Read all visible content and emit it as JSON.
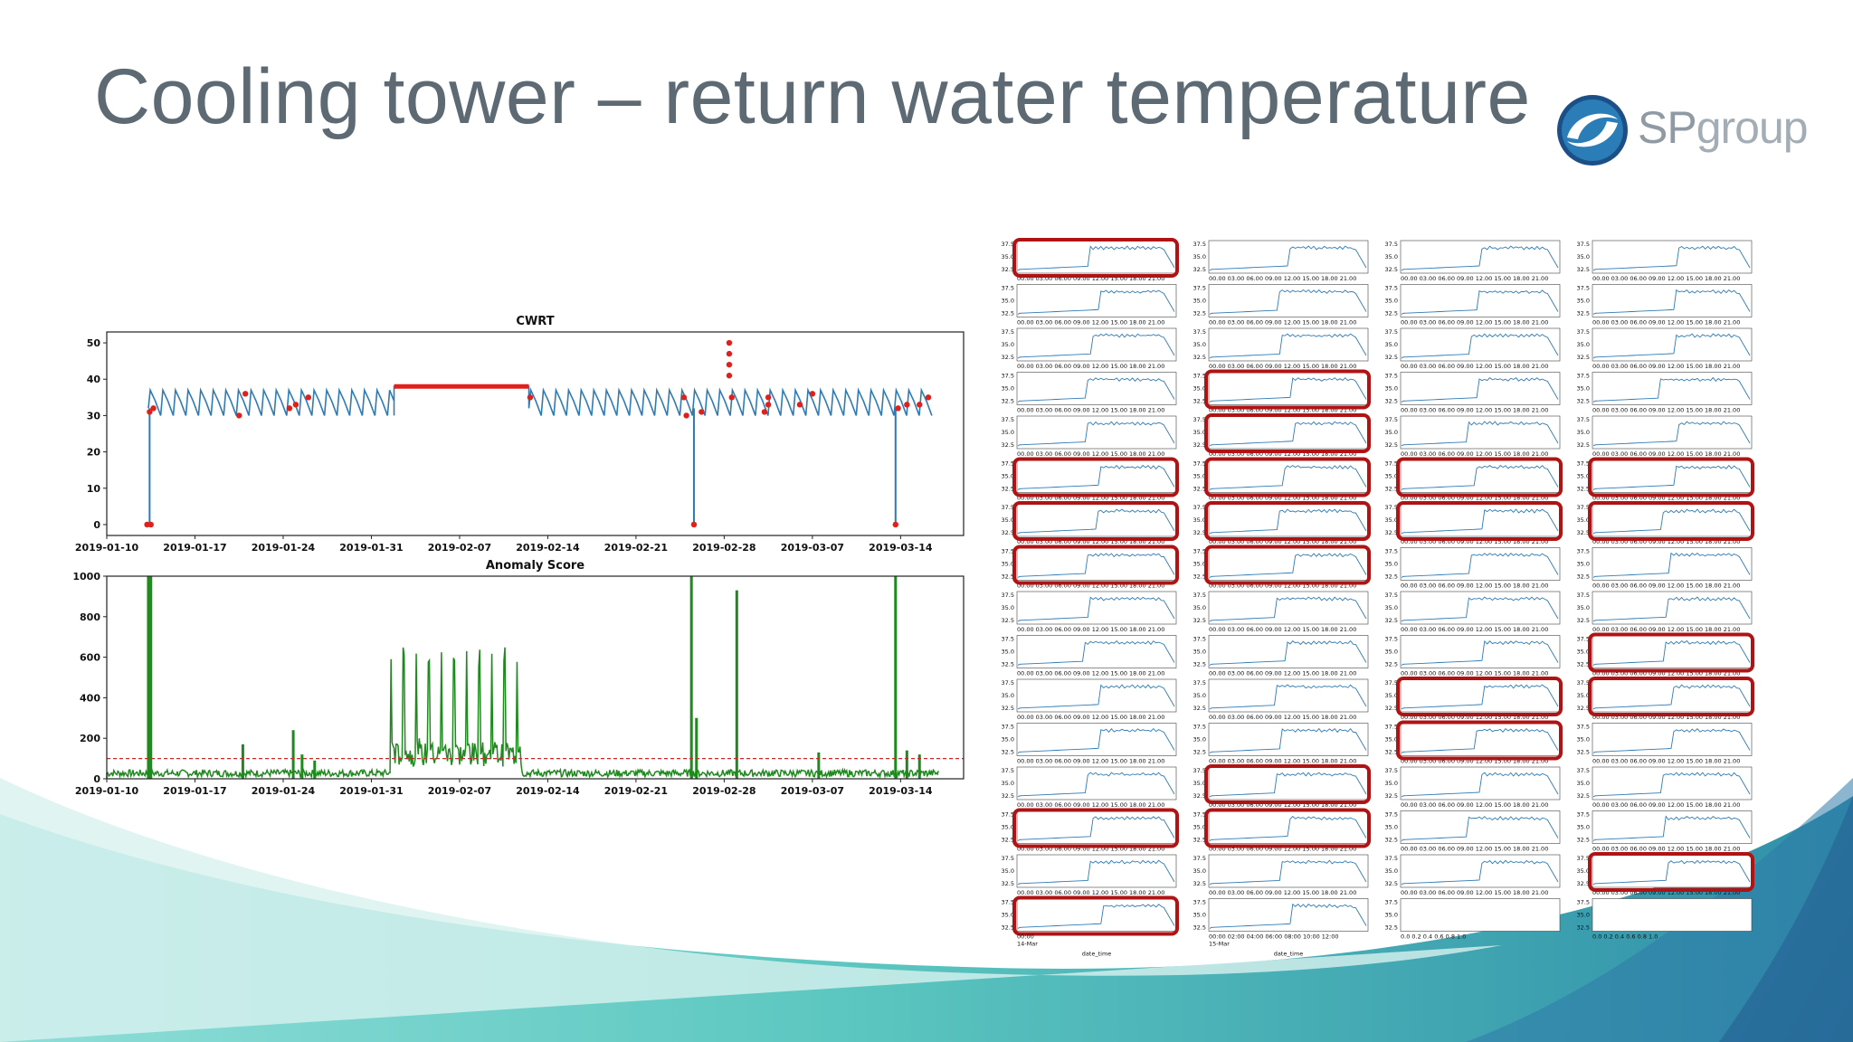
{
  "slide": {
    "title": "Cooling tower – return water temperature",
    "logo": {
      "brand_main": "SP",
      "brand_suffix": "group"
    }
  },
  "colors": {
    "cwrt_line": "#2f7bb5",
    "anomaly_marker": "#e0201b",
    "anomaly_score": "#1e8a1e",
    "threshold": "#d62222",
    "highlight_box": "#b01313",
    "title_text": "#5d6a74",
    "teal_wave": "#3bb8b0"
  },
  "chart_data": [
    {
      "type": "line",
      "title": "CWRT",
      "xlabel": "",
      "ylabel": "",
      "x_ticks": [
        "2019-01-10",
        "2019-01-17",
        "2019-01-24",
        "2019-01-31",
        "2019-02-07",
        "2019-02-14",
        "2019-02-21",
        "2019-02-28",
        "2019-03-07",
        "2019-03-14"
      ],
      "y_ticks": [
        "0",
        "10",
        "20",
        "30",
        "40",
        "50"
      ],
      "ylim": [
        -3,
        53
      ],
      "x_range_days": [
        0,
        68
      ],
      "grid": false,
      "series": [
        {
          "cycle_days": 1,
          "segments": [
            {
              "from_day": 3.3,
              "to_day": 22.8,
              "low": 30,
              "high": 37
            },
            {
              "from_day": 33.5,
              "to_day": 65.5,
              "low": 30,
              "high": 37
            }
          ],
          "flat_segment": {
            "from_day": 22.8,
            "to_day": 33.5,
            "value": 38
          },
          "drops_to_zero_days": [
            3.4,
            46.6,
            62.6
          ]
        }
      ],
      "anomaly_points": [
        {
          "day": 3.2,
          "value": 0
        },
        {
          "day": 3.5,
          "value": 0
        },
        {
          "day": 3.4,
          "value": 31
        },
        {
          "day": 3.7,
          "value": 32
        },
        {
          "day": 10.5,
          "value": 30
        },
        {
          "day": 11.0,
          "value": 36
        },
        {
          "day": 14.5,
          "value": 32
        },
        {
          "day": 15.0,
          "value": 33
        },
        {
          "day": 16.0,
          "value": 35
        },
        {
          "day": 33.6,
          "value": 35
        },
        {
          "day": 45.8,
          "value": 35
        },
        {
          "day": 46.0,
          "value": 30
        },
        {
          "day": 46.6,
          "value": 0
        },
        {
          "day": 47.2,
          "value": 31
        },
        {
          "day": 49.4,
          "value": 50
        },
        {
          "day": 49.4,
          "value": 47
        },
        {
          "day": 49.4,
          "value": 44
        },
        {
          "day": 49.4,
          "value": 41
        },
        {
          "day": 49.6,
          "value": 35
        },
        {
          "day": 52.2,
          "value": 31
        },
        {
          "day": 52.5,
          "value": 33
        },
        {
          "day": 52.5,
          "value": 35
        },
        {
          "day": 55.0,
          "value": 33
        },
        {
          "day": 56.0,
          "value": 36
        },
        {
          "day": 62.6,
          "value": 0
        },
        {
          "day": 62.8,
          "value": 32
        },
        {
          "day": 63.5,
          "value": 33
        },
        {
          "day": 64.5,
          "value": 33
        },
        {
          "day": 65.2,
          "value": 35
        }
      ]
    },
    {
      "type": "line",
      "title": "Anomaly Score",
      "xlabel": "",
      "ylabel": "",
      "x_ticks": [
        "2019-01-10",
        "2019-01-17",
        "2019-01-24",
        "2019-01-31",
        "2019-02-07",
        "2019-02-14",
        "2019-02-21",
        "2019-02-28",
        "2019-03-07",
        "2019-03-14"
      ],
      "y_ticks": [
        "0",
        "200",
        "400",
        "600",
        "800",
        "1000"
      ],
      "ylim": [
        0,
        1000
      ],
      "x_range_days": [
        0,
        68
      ],
      "threshold": 100,
      "grid": false,
      "spikes": [
        {
          "day": 3.3,
          "value": 1000
        },
        {
          "day": 3.5,
          "value": 1000
        },
        {
          "day": 10.8,
          "value": 170
        },
        {
          "day": 14.8,
          "value": 240
        },
        {
          "day": 15.5,
          "value": 120
        },
        {
          "day": 16.5,
          "value": 90
        },
        {
          "day": 46.4,
          "value": 1000
        },
        {
          "day": 46.8,
          "value": 300
        },
        {
          "day": 50.0,
          "value": 930
        },
        {
          "day": 56.5,
          "value": 130
        },
        {
          "day": 62.6,
          "value": 1000
        },
        {
          "day": 63.5,
          "value": 140
        },
        {
          "day": 64.5,
          "value": 120
        }
      ],
      "oscillation_band": {
        "from_day": 22.5,
        "to_day": 32.9,
        "high": 650,
        "cycle_days": 1
      }
    }
  ],
  "grid_panel": {
    "rows": 16,
    "cols": 4,
    "y_tick_values": [
      32.5,
      35.0,
      37.5
    ],
    "x_tick_text": "00.00 03.00 06.00 09.00 12.00 15.00 18.00 21.00",
    "bottom_x_labels": [
      [
        "00:00",
        "14-Mar"
      ],
      [
        "00:00 02:00 04:00 06:00 08:00 10:00 12:00",
        "15-Mar"
      ],
      [
        "0.0 0.2 0.4 0.6 0.8 1.0"
      ],
      [
        "0.0 0.2 0.4 0.6 0.8 1.0"
      ]
    ],
    "bottom_xlabel": "date_time",
    "highlighted_cells": [
      [
        0,
        0
      ],
      [
        3,
        1
      ],
      [
        4,
        1
      ],
      [
        9,
        3
      ],
      [
        5,
        0
      ],
      [
        5,
        1
      ],
      [
        5,
        2
      ],
      [
        5,
        3
      ],
      [
        6,
        0
      ],
      [
        6,
        1
      ],
      [
        6,
        2
      ],
      [
        6,
        3
      ],
      [
        7,
        0
      ],
      [
        7,
        1
      ],
      [
        10,
        2
      ],
      [
        10,
        3
      ],
      [
        11,
        2
      ],
      [
        12,
        1
      ],
      [
        13,
        0
      ],
      [
        13,
        1
      ],
      [
        14,
        3
      ],
      [
        15,
        0
      ]
    ]
  }
}
